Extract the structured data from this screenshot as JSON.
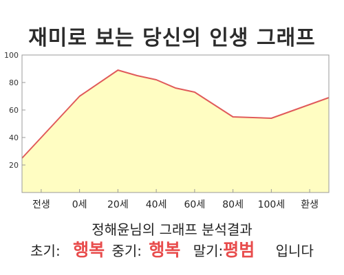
{
  "chart_data": {
    "type": "area",
    "title": "재미로 보는 당신의 인생 그래프",
    "subtitle": "정해윤님의 그래프 분석결과",
    "x_tick_labels": [
      "전생",
      "0세",
      "20세",
      "40세",
      "60세",
      "80세",
      "100세",
      "환생"
    ],
    "y_ticks": [
      20,
      40,
      60,
      80,
      100
    ],
    "ylim": [
      0,
      100
    ],
    "x": [
      -20,
      0,
      20,
      30,
      40,
      50,
      60,
      80,
      100,
      120
    ],
    "y": [
      40,
      70,
      89,
      85,
      82,
      76,
      73,
      55,
      54,
      64
    ],
    "xlim": [
      -30,
      130
    ],
    "grid": false,
    "colors": {
      "fill": "#fffdc2",
      "line": "#e05a5a",
      "axis": "#999999",
      "text": "#222222"
    }
  },
  "summary": {
    "early_label": "초기:",
    "early_value": "행복",
    "mid_label": "중기:",
    "mid_value": "행복",
    "late_label": "말기:",
    "late_value": "평범",
    "suffix": "입니다",
    "highlight_color": "#e84c4c"
  }
}
